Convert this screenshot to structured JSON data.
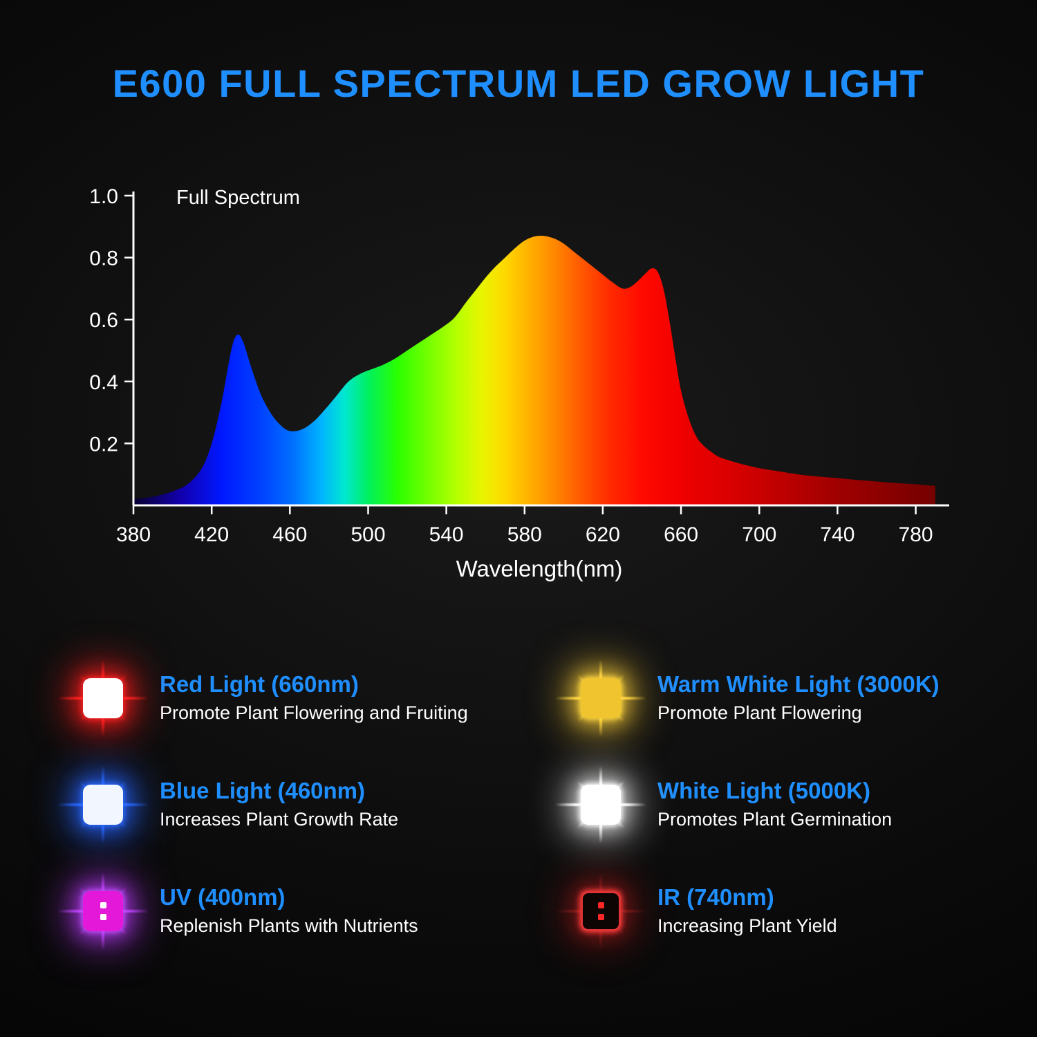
{
  "page": {
    "background": "#0c0c0c",
    "accent_blue": "#1f8fff",
    "text_white": "#ffffff"
  },
  "title": "E600 FULL SPECTRUM LED GROW LIGHT",
  "chart_data": {
    "type": "area",
    "title": "Full Spectrum",
    "xlabel": "Wavelength(nm)",
    "ylabel": "",
    "xlim": [
      380,
      795
    ],
    "ylim": [
      0,
      1.0
    ],
    "x_ticks": [
      380,
      420,
      460,
      500,
      540,
      580,
      620,
      660,
      700,
      740,
      780
    ],
    "y_ticks": [
      0.2,
      0.4,
      0.6,
      0.8,
      1.0
    ],
    "grid": false,
    "legend_position": "none",
    "series": [
      {
        "name": "Full Spectrum",
        "x": [
          380,
          390,
          400,
          408,
          415,
          420,
          425,
          430,
          433,
          436,
          440,
          445,
          450,
          455,
          460,
          466,
          472,
          478,
          484,
          490,
          496,
          502,
          508,
          514,
          520,
          526,
          532,
          538,
          544,
          550,
          555,
          560,
          565,
          570,
          575,
          580,
          585,
          590,
          595,
          600,
          605,
          610,
          615,
          620,
          625,
          630,
          634,
          638,
          642,
          645,
          648,
          651,
          654,
          657,
          660,
          664,
          668,
          672,
          676,
          680,
          690,
          700,
          710,
          720,
          730,
          740,
          750,
          760,
          770,
          780,
          790
        ],
        "y": [
          0.02,
          0.028,
          0.045,
          0.07,
          0.12,
          0.2,
          0.33,
          0.5,
          0.55,
          0.53,
          0.45,
          0.36,
          0.3,
          0.26,
          0.24,
          0.245,
          0.27,
          0.31,
          0.355,
          0.4,
          0.425,
          0.44,
          0.455,
          0.475,
          0.5,
          0.525,
          0.55,
          0.575,
          0.605,
          0.655,
          0.695,
          0.735,
          0.77,
          0.8,
          0.83,
          0.855,
          0.868,
          0.87,
          0.862,
          0.845,
          0.82,
          0.795,
          0.77,
          0.745,
          0.72,
          0.7,
          0.705,
          0.725,
          0.75,
          0.765,
          0.755,
          0.7,
          0.6,
          0.48,
          0.37,
          0.28,
          0.22,
          0.19,
          0.17,
          0.155,
          0.135,
          0.12,
          0.11,
          0.1,
          0.093,
          0.088,
          0.082,
          0.077,
          0.072,
          0.068,
          0.063
        ]
      }
    ],
    "gradient_stops": [
      [
        380,
        "#08002e"
      ],
      [
        405,
        "#1200b0"
      ],
      [
        425,
        "#0018ff"
      ],
      [
        445,
        "#0040ff"
      ],
      [
        462,
        "#0072ff"
      ],
      [
        476,
        "#00b4ff"
      ],
      [
        488,
        "#00e8d0"
      ],
      [
        500,
        "#00f060"
      ],
      [
        515,
        "#2aff00"
      ],
      [
        530,
        "#70ff00"
      ],
      [
        545,
        "#b4ff00"
      ],
      [
        558,
        "#e8f500"
      ],
      [
        570,
        "#ffd800"
      ],
      [
        583,
        "#ffae00"
      ],
      [
        596,
        "#ff8500"
      ],
      [
        610,
        "#ff5500"
      ],
      [
        624,
        "#ff2a00"
      ],
      [
        640,
        "#ff0a00"
      ],
      [
        660,
        "#f00000"
      ],
      [
        690,
        "#d40000"
      ],
      [
        740,
        "#a00000"
      ],
      [
        795,
        "#700000"
      ]
    ]
  },
  "features": {
    "items": [
      {
        "title": "Red Light (660nm)",
        "desc": "Promote Plant Flowering and Fruiting",
        "icon": {
          "name": "red-led-icon",
          "body": "#ffffff",
          "glow": "#ff2222",
          "glow_outer": "rgba(255,30,30,0.55)",
          "ray_opacity": 0.95
        }
      },
      {
        "title": "Blue Light (460nm)",
        "desc": "Increases Plant Growth Rate",
        "icon": {
          "name": "blue-led-icon",
          "body": "#f2f7ff",
          "glow": "#2b6bff",
          "glow_outer": "rgba(40,100,255,0.55)",
          "ray_opacity": 0.95
        }
      },
      {
        "title": "UV (400nm)",
        "desc": "Replenish Plants with Nutrients",
        "icon": {
          "name": "uv-led-icon",
          "body": "#e318d8",
          "glow": "#c44dff",
          "glow_outer": "rgba(190,60,255,0.55)",
          "dots": "#ffffff",
          "ray_opacity": 0.9
        }
      },
      {
        "title": "Warm White Light (3000K)",
        "desc": "Promote Plant Flowering",
        "icon": {
          "name": "warm-white-led-icon",
          "body": "#f0c42e",
          "glow": "#ffd943",
          "glow_outer": "rgba(255,210,60,0.55)",
          "ray_opacity": 0.95
        }
      },
      {
        "title": "White Light (5000K)",
        "desc": "Promotes Plant Germination",
        "icon": {
          "name": "white-led-icon",
          "body": "#ffffff",
          "glow": "#ffffff",
          "glow_outer": "rgba(255,255,255,0.5)",
          "ray_opacity": 0.95
        }
      },
      {
        "title": "IR (740nm)",
        "desc": "Increasing Plant Yield",
        "icon": {
          "name": "ir-led-icon",
          "body": "#0d0404",
          "glow": "#ff3b3b",
          "glow_outer": "rgba(200,30,30,0.35)",
          "border": "#e03434",
          "dots": "#ff2626",
          "ray_opacity": 0.3,
          "ray_core": "#ff6a6a"
        }
      }
    ]
  }
}
